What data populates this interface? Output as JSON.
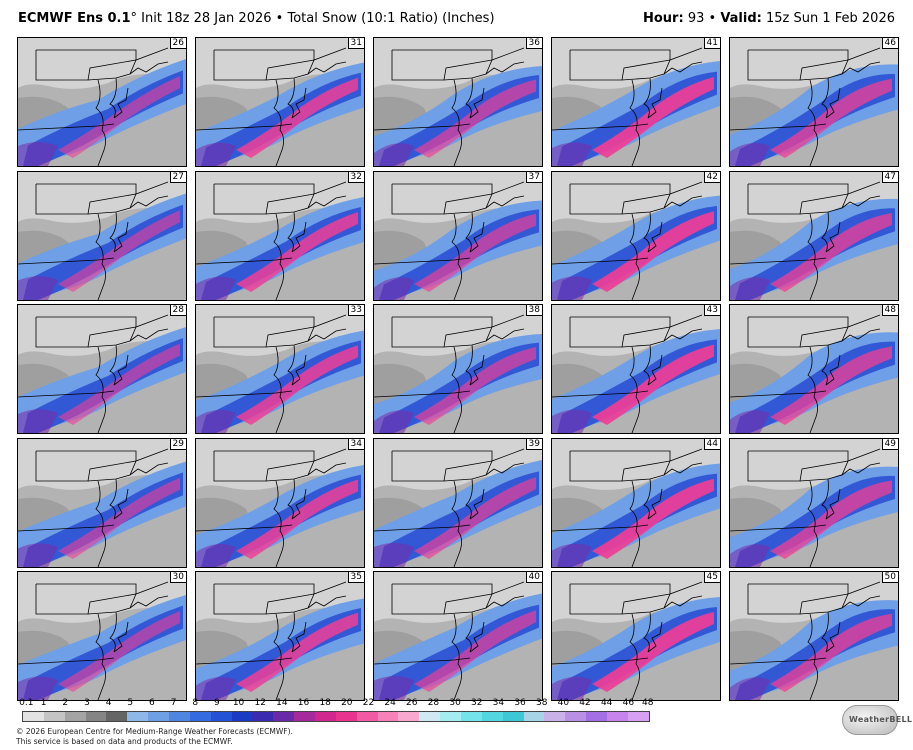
{
  "header": {
    "model": "ECMWF Ens 0.1",
    "degree": "°",
    "init_text": "Init 18z 28 Jan 2026",
    "bullet": "•",
    "product": "Total Snow (10:1 Ratio) (Inches)",
    "hour_label": "Hour:",
    "hour_value": "93",
    "valid_label": "Valid:",
    "valid_value": "15z Sun 1 Feb 2026"
  },
  "members": [
    [
      "26",
      "31",
      "36",
      "41",
      "46"
    ],
    [
      "27",
      "32",
      "37",
      "42",
      "47"
    ],
    [
      "28",
      "33",
      "38",
      "43",
      "48"
    ],
    [
      "29",
      "34",
      "39",
      "44",
      "49"
    ],
    [
      "30",
      "35",
      "40",
      "45",
      "50"
    ]
  ],
  "colorbar": {
    "tick_labels": [
      "0.1",
      "1",
      "2",
      "3",
      "4",
      "5",
      "6",
      "7",
      "8",
      "9",
      "10",
      "12",
      "14",
      "16",
      "18",
      "20",
      "22",
      "24",
      "26",
      "28",
      "30",
      "32",
      "34",
      "36",
      "38",
      "40",
      "42",
      "44",
      "46",
      "48"
    ],
    "colors": [
      "#e2e2e2",
      "#c4c4c4",
      "#a4a4a4",
      "#858585",
      "#656565",
      "#8fb8e8",
      "#6fa0e6",
      "#4f86e0",
      "#356be0",
      "#2352d6",
      "#1b3bc4",
      "#3a2bb0",
      "#6a2aa8",
      "#a52a9c",
      "#d0288f",
      "#e8348f",
      "#f25aa4",
      "#f583b9",
      "#f8a8cf",
      "#cfe8f4",
      "#a4ecf0",
      "#74e4ea",
      "#54d6e0",
      "#3ec8d6",
      "#a8d4e8",
      "#c8b2e8",
      "#b890e6",
      "#a46ee4",
      "#c784ec",
      "#d7a0f0"
    ]
  },
  "footer": {
    "line1": "© 2026 European Centre for Medium-Range Weather Forecasts (ECMWF).",
    "line2": "This service is based on data and products of the ECMWF."
  },
  "logo_text": "WeatherBELL",
  "colors": {
    "background": "#ffffff",
    "snow_heavy": "#f0469a",
    "snow_moderate": "#2d5fd6",
    "snow_light": "#8ab4ec",
    "trace": "#a8a8a8",
    "extreme": "#7de3f0"
  }
}
